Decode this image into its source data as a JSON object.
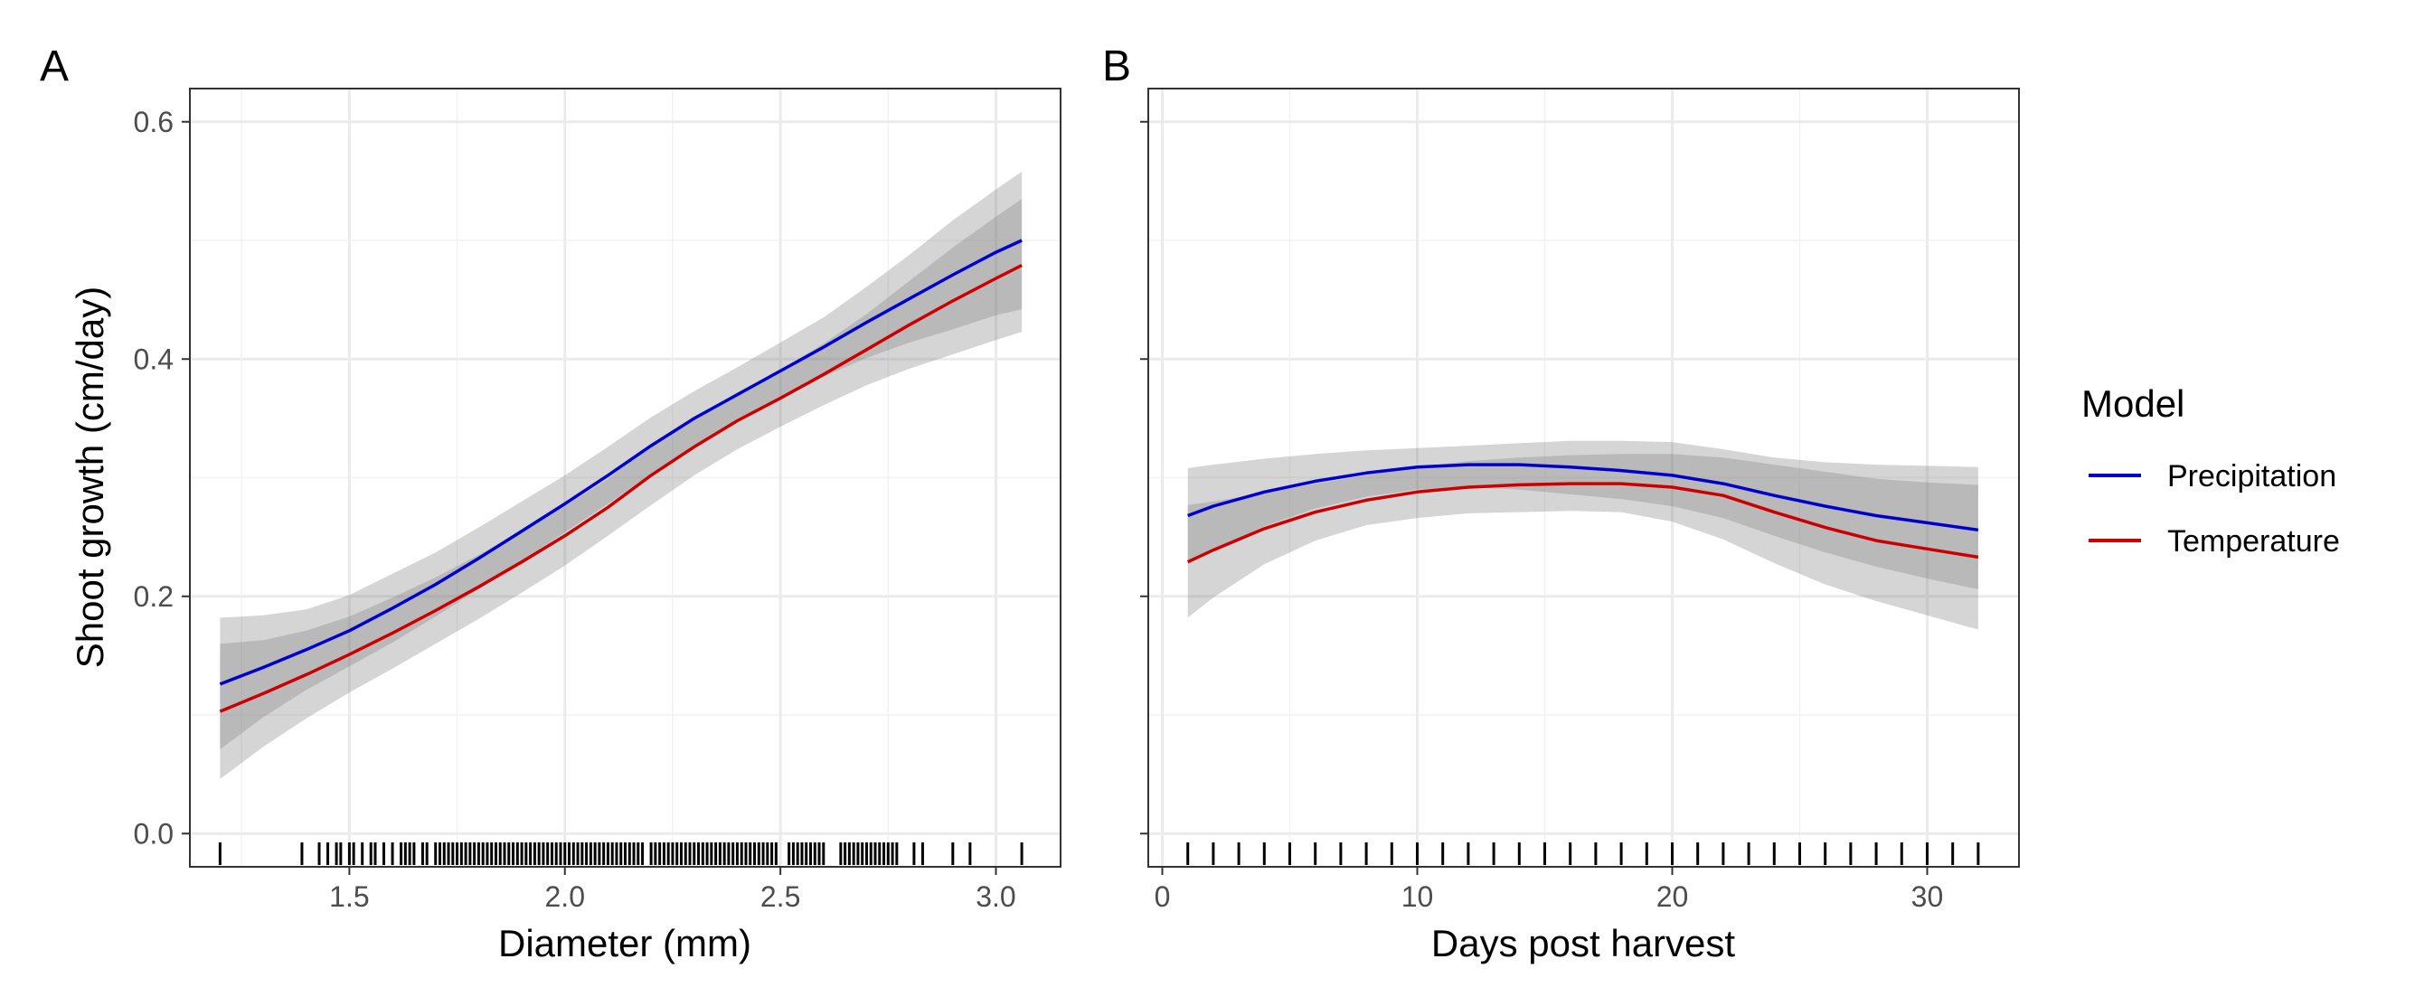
{
  "legend": {
    "title": "Model",
    "entries": [
      {
        "label": "Precipitation",
        "color": "#0000CC"
      },
      {
        "label": "Temperature",
        "color": "#CC0000"
      }
    ]
  },
  "chart_data": [
    {
      "type": "line",
      "panel": "A",
      "xlabel": "Diameter (mm)",
      "ylabel": "Shoot growth (cm/day)",
      "xlim": [
        1.13,
        3.15
      ],
      "ylim": [
        -0.028,
        0.628
      ],
      "xticks": [
        1.5,
        2.0,
        2.5,
        3.0
      ],
      "xtick_labels": [
        "1.5",
        "2.0",
        "2.5",
        "3.0"
      ],
      "yticks": [
        0.0,
        0.2,
        0.4,
        0.6
      ],
      "ytick_labels": [
        "0.0",
        "0.2",
        "0.4",
        "0.6"
      ],
      "grid": true,
      "x": [
        1.2,
        1.3,
        1.4,
        1.5,
        1.6,
        1.7,
        1.8,
        1.9,
        2.0,
        2.1,
        2.2,
        2.3,
        2.4,
        2.5,
        2.6,
        2.7,
        2.8,
        2.9,
        3.0,
        3.06
      ],
      "series": [
        {
          "name": "Precipitation",
          "color": "#0000CC",
          "values": [
            0.126,
            0.14,
            0.155,
            0.171,
            0.19,
            0.21,
            0.232,
            0.255,
            0.278,
            0.302,
            0.327,
            0.35,
            0.37,
            0.39,
            0.41,
            0.431,
            0.451,
            0.471,
            0.49,
            0.5
          ],
          "lower": [
            0.071,
            0.098,
            0.121,
            0.141,
            0.161,
            0.183,
            0.206,
            0.23,
            0.254,
            0.278,
            0.303,
            0.327,
            0.347,
            0.366,
            0.385,
            0.401,
            0.414,
            0.425,
            0.437,
            0.442
          ],
          "upper": [
            0.182,
            0.184,
            0.189,
            0.201,
            0.219,
            0.237,
            0.258,
            0.28,
            0.302,
            0.326,
            0.351,
            0.373,
            0.393,
            0.414,
            0.435,
            0.461,
            0.488,
            0.517,
            0.543,
            0.558
          ]
        },
        {
          "name": "Temperature",
          "color": "#CC0000",
          "values": [
            0.103,
            0.118,
            0.134,
            0.151,
            0.169,
            0.188,
            0.208,
            0.229,
            0.251,
            0.275,
            0.302,
            0.326,
            0.348,
            0.367,
            0.387,
            0.408,
            0.429,
            0.449,
            0.468,
            0.479
          ],
          "lower": [
            0.046,
            0.073,
            0.097,
            0.119,
            0.139,
            0.16,
            0.181,
            0.203,
            0.226,
            0.251,
            0.277,
            0.302,
            0.324,
            0.343,
            0.361,
            0.378,
            0.392,
            0.404,
            0.416,
            0.423
          ],
          "upper": [
            0.16,
            0.163,
            0.171,
            0.183,
            0.199,
            0.216,
            0.235,
            0.255,
            0.276,
            0.299,
            0.327,
            0.35,
            0.372,
            0.391,
            0.413,
            0.438,
            0.466,
            0.494,
            0.52,
            0.535
          ]
        }
      ],
      "rug_x": [
        1.2,
        1.39,
        1.43,
        1.45,
        1.47,
        1.48,
        1.5,
        1.51,
        1.53,
        1.55,
        1.56,
        1.58,
        1.6,
        1.62,
        1.63,
        1.64,
        1.65,
        1.67,
        1.68,
        1.7,
        1.71,
        1.72,
        1.73,
        1.74,
        1.75,
        1.76,
        1.77,
        1.78,
        1.79,
        1.8,
        1.81,
        1.82,
        1.83,
        1.84,
        1.85,
        1.86,
        1.87,
        1.88,
        1.89,
        1.9,
        1.91,
        1.92,
        1.93,
        1.94,
        1.95,
        1.96,
        1.97,
        1.98,
        1.99,
        2.0,
        2.01,
        2.02,
        2.03,
        2.04,
        2.05,
        2.06,
        2.07,
        2.08,
        2.09,
        2.1,
        2.11,
        2.12,
        2.13,
        2.14,
        2.15,
        2.16,
        2.17,
        2.18,
        2.2,
        2.21,
        2.22,
        2.23,
        2.24,
        2.25,
        2.26,
        2.27,
        2.28,
        2.29,
        2.3,
        2.31,
        2.32,
        2.33,
        2.34,
        2.35,
        2.36,
        2.37,
        2.38,
        2.39,
        2.4,
        2.41,
        2.42,
        2.43,
        2.44,
        2.45,
        2.46,
        2.47,
        2.48,
        2.49,
        2.52,
        2.53,
        2.54,
        2.55,
        2.56,
        2.57,
        2.58,
        2.59,
        2.6,
        2.64,
        2.65,
        2.66,
        2.67,
        2.68,
        2.69,
        2.7,
        2.71,
        2.72,
        2.73,
        2.74,
        2.75,
        2.76,
        2.77,
        2.81,
        2.83,
        2.9,
        2.94,
        3.06
      ]
    },
    {
      "type": "line",
      "panel": "B",
      "xlabel": "Days post harvest",
      "ylabel": "",
      "xlim": [
        -0.55,
        33.6
      ],
      "ylim": [
        -0.028,
        0.628
      ],
      "xticks": [
        0,
        10,
        20,
        30
      ],
      "xtick_labels": [
        "0",
        "10",
        "20",
        "30"
      ],
      "yticks": [
        0.0,
        0.2,
        0.4,
        0.6
      ],
      "grid": true,
      "x": [
        1,
        2,
        4,
        6,
        8,
        10,
        12,
        14,
        16,
        18,
        20,
        22,
        24,
        26,
        28,
        30,
        32
      ],
      "series": [
        {
          "name": "Precipitation",
          "color": "#0000CC",
          "values": [
            0.268,
            0.276,
            0.288,
            0.297,
            0.304,
            0.309,
            0.311,
            0.311,
            0.309,
            0.306,
            0.302,
            0.295,
            0.285,
            0.276,
            0.268,
            0.262,
            0.256
          ],
          "lower": [
            0.227,
            0.239,
            0.259,
            0.274,
            0.284,
            0.29,
            0.292,
            0.29,
            0.286,
            0.282,
            0.276,
            0.266,
            0.251,
            0.237,
            0.225,
            0.215,
            0.206
          ],
          "upper": [
            0.308,
            0.311,
            0.316,
            0.32,
            0.323,
            0.325,
            0.327,
            0.329,
            0.331,
            0.331,
            0.33,
            0.324,
            0.317,
            0.313,
            0.311,
            0.31,
            0.309
          ]
        },
        {
          "name": "Temperature",
          "color": "#CC0000",
          "values": [
            0.229,
            0.239,
            0.257,
            0.271,
            0.281,
            0.288,
            0.292,
            0.294,
            0.295,
            0.295,
            0.292,
            0.285,
            0.271,
            0.258,
            0.247,
            0.24,
            0.233
          ],
          "lower": [
            0.182,
            0.199,
            0.227,
            0.247,
            0.26,
            0.266,
            0.27,
            0.271,
            0.272,
            0.271,
            0.263,
            0.248,
            0.228,
            0.21,
            0.196,
            0.184,
            0.172
          ],
          "upper": [
            0.277,
            0.28,
            0.287,
            0.295,
            0.302,
            0.309,
            0.314,
            0.317,
            0.319,
            0.32,
            0.32,
            0.317,
            0.311,
            0.305,
            0.299,
            0.296,
            0.294
          ]
        }
      ],
      "rug_x": [
        1,
        2,
        3,
        4,
        5,
        6,
        7,
        8,
        9,
        10,
        11,
        12,
        13,
        14,
        15,
        16,
        17,
        18,
        19,
        20,
        21,
        22,
        23,
        24,
        25,
        26,
        27,
        28,
        29,
        30,
        31,
        32
      ]
    }
  ],
  "panels": {
    "a": {
      "tag": "A",
      "xlabel": "Diameter (mm)",
      "ylabel": "Shoot growth (cm/day)"
    },
    "b": {
      "tag": "B",
      "xlabel": "Days post harvest"
    }
  }
}
